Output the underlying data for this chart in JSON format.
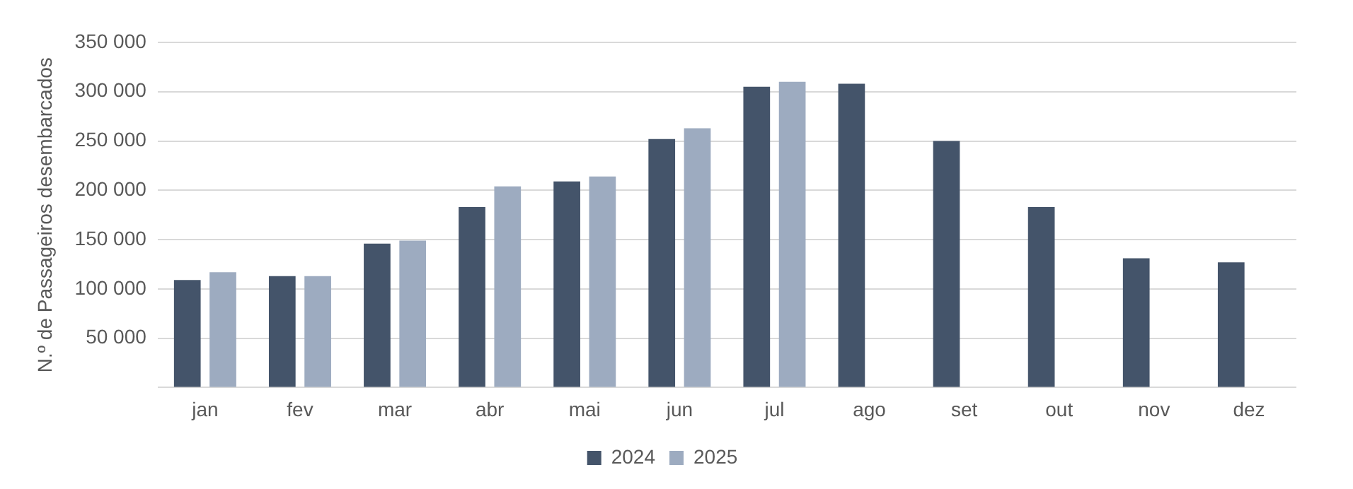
{
  "chart_data": {
    "type": "bar",
    "ylabel": "N.º de Passageiros desembarcados",
    "categories": [
      "jan",
      "fev",
      "mar",
      "abr",
      "mai",
      "jun",
      "jul",
      "ago",
      "set",
      "out",
      "nov",
      "dez"
    ],
    "series": [
      {
        "name": "2024",
        "color": "#44546a",
        "values": [
          109000,
          113000,
          146000,
          183000,
          209000,
          252000,
          305000,
          308000,
          250000,
          183000,
          131000,
          127000
        ]
      },
      {
        "name": "2025",
        "color": "#9dabc0",
        "values": [
          117000,
          113000,
          149000,
          204000,
          214000,
          263000,
          310000,
          null,
          null,
          null,
          null,
          null
        ]
      }
    ],
    "ylim": [
      0,
      350000
    ],
    "yticks": [
      {
        "value": 0,
        "label": null
      },
      {
        "value": 50000,
        "label": "50 000"
      },
      {
        "value": 100000,
        "label": "100 000"
      },
      {
        "value": 150000,
        "label": "150 000"
      },
      {
        "value": 200000,
        "label": "200 000"
      },
      {
        "value": 250000,
        "label": "250 000"
      },
      {
        "value": 300000,
        "label": "300 000"
      },
      {
        "value": 350000,
        "label": "350 000"
      }
    ],
    "grid": "y",
    "legend": "bottom"
  }
}
